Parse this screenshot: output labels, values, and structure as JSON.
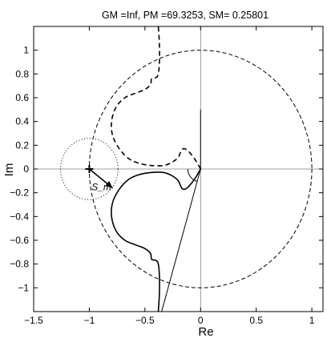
{
  "chart_data": {
    "type": "line",
    "title": "GM =Inf,    PM =69.3253,    SM= 0.25801",
    "xlabel": "Re",
    "ylabel": "Im",
    "xlim": [
      -1.5,
      1.1
    ],
    "ylim": [
      -1.2,
      1.2
    ],
    "xticks": [
      -1.5,
      -1,
      -0.5,
      0,
      0.5,
      1
    ],
    "xtick_labels": [
      "−1.5",
      "−1",
      "−0.5",
      "0",
      "0.5",
      "1"
    ],
    "yticks": [
      1,
      0.8,
      0.6,
      0.4,
      0.2,
      0,
      -0.2,
      -0.4,
      -0.6,
      -0.8,
      -1
    ],
    "ytick_labels": [
      "1",
      "0.8",
      "0.6",
      "0.4",
      "0.2",
      "0",
      "−0.2",
      "−0.4",
      "−0.6",
      "−0.8",
      "−1"
    ],
    "grid": false,
    "annotation": "S_m",
    "critical_point": [
      -1,
      0
    ],
    "series": [
      {
        "style": "solid",
        "points": [
          [
            0,
            0
          ],
          [
            -0.05,
            -0.08
          ],
          [
            -0.1,
            -0.14
          ],
          [
            -0.14,
            -0.17
          ],
          [
            -0.17,
            -0.16
          ],
          [
            -0.2,
            -0.1
          ],
          [
            -0.25,
            -0.06
          ],
          [
            -0.33,
            -0.03
          ],
          [
            -0.45,
            -0.03
          ],
          [
            -0.56,
            -0.05
          ],
          [
            -0.65,
            -0.09
          ],
          [
            -0.73,
            -0.17
          ],
          [
            -0.79,
            -0.28
          ],
          [
            -0.8,
            -0.4
          ],
          [
            -0.76,
            -0.52
          ],
          [
            -0.68,
            -0.6
          ],
          [
            -0.58,
            -0.64
          ],
          [
            -0.5,
            -0.67
          ],
          [
            -0.45,
            -0.71
          ],
          [
            -0.44,
            -0.76
          ],
          [
            -0.4,
            -0.77
          ],
          [
            -0.38,
            -0.8
          ],
          [
            -0.37,
            -0.9
          ],
          [
            -0.37,
            -1.05
          ],
          [
            -0.38,
            -1.2
          ]
        ]
      },
      {
        "style": "dashed",
        "points": [
          [
            0,
            0
          ],
          [
            -0.05,
            0.08
          ],
          [
            -0.1,
            0.14
          ],
          [
            -0.14,
            0.17
          ],
          [
            -0.17,
            0.16
          ],
          [
            -0.2,
            0.1
          ],
          [
            -0.25,
            0.06
          ],
          [
            -0.33,
            0.03
          ],
          [
            -0.45,
            0.03
          ],
          [
            -0.56,
            0.05
          ],
          [
            -0.65,
            0.09
          ],
          [
            -0.73,
            0.17
          ],
          [
            -0.79,
            0.28
          ],
          [
            -0.8,
            0.4
          ],
          [
            -0.76,
            0.52
          ],
          [
            -0.68,
            0.6
          ],
          [
            -0.58,
            0.64
          ],
          [
            -0.5,
            0.67
          ],
          [
            -0.45,
            0.71
          ],
          [
            -0.44,
            0.76
          ],
          [
            -0.4,
            0.77
          ],
          [
            -0.38,
            0.8
          ],
          [
            -0.37,
            0.9
          ],
          [
            -0.37,
            1.05
          ],
          [
            -0.38,
            1.2
          ]
        ]
      }
    ],
    "unit_circle": {
      "center": [
        0,
        0
      ],
      "radius": 1,
      "style": "dashed"
    },
    "stability_margin_circle": {
      "center": [
        -1,
        0
      ],
      "radius": 0.258,
      "style": "dotted"
    },
    "sm_arrow": {
      "from": [
        -1,
        0
      ],
      "to": [
        -0.79,
        -0.16
      ]
    },
    "phase_margin_line": {
      "from": [
        0,
        0
      ],
      "to": [
        -0.35,
        -1.2
      ]
    },
    "vertical_line": {
      "x": 0,
      "y_from": 0,
      "y_to": 0.5
    }
  }
}
